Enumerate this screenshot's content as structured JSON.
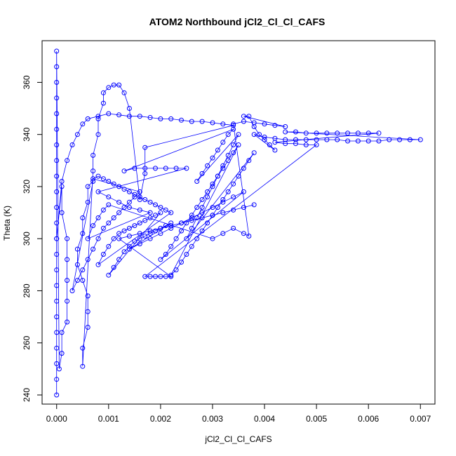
{
  "chart_data": {
    "type": "scatter",
    "title": "ATOM2 Northbound jCl2_Cl_Cl_CAFS",
    "xlabel": "jCl2_Cl_Cl_CAFS",
    "ylabel": "Theta (K)",
    "xlim": [
      -0.00028,
      0.00728
    ],
    "ylim": [
      236.5,
      376
    ],
    "xticks": [
      "0.000",
      "0.001",
      "0.002",
      "0.003",
      "0.004",
      "0.005",
      "0.006",
      "0.007"
    ],
    "yticks": [
      "240",
      "260",
      "280",
      "300",
      "320",
      "340",
      "360"
    ],
    "marker": "open-circle",
    "line_connected": true,
    "grid": false,
    "color": "#0000ff",
    "series": [
      {
        "points": [
          [
            0.0,
            240
          ],
          [
            0.0,
            246
          ],
          [
            0.0,
            252
          ],
          [
            0.0,
            258
          ],
          [
            0.0,
            264
          ],
          [
            0.0,
            270
          ],
          [
            0.0,
            276
          ],
          [
            0.0,
            282
          ],
          [
            0.0,
            288
          ],
          [
            0.0,
            294
          ],
          [
            0.0,
            300
          ],
          [
            0.0,
            306
          ],
          [
            0.0,
            312
          ],
          [
            0.0,
            318
          ],
          [
            0.0,
            324
          ],
          [
            0.0,
            330
          ],
          [
            0.0,
            336
          ],
          [
            0.0,
            342
          ],
          [
            0.0,
            348
          ],
          [
            0.0,
            354
          ],
          [
            0.0,
            360
          ],
          [
            0.0,
            366
          ],
          [
            0.0,
            372
          ],
          [
            5e-05,
            250
          ],
          [
            0.0001,
            256
          ],
          [
            0.0001,
            264
          ],
          [
            0.0002,
            268
          ],
          [
            0.0002,
            276
          ],
          [
            0.0002,
            284
          ],
          [
            0.0002,
            292
          ],
          [
            0.0002,
            300
          ],
          [
            0.0001,
            310
          ],
          [
            0.0001,
            320
          ],
          [
            0.0,
            300
          ],
          [
            0.0001,
            322
          ],
          [
            0.0002,
            330
          ],
          [
            0.0003,
            336
          ],
          [
            0.0004,
            340
          ],
          [
            0.0005,
            344
          ],
          [
            0.0006,
            346
          ],
          [
            0.0008,
            347
          ],
          [
            0.001,
            348
          ],
          [
            0.0012,
            347.5
          ],
          [
            0.0014,
            347
          ],
          [
            0.0016,
            347
          ],
          [
            0.0018,
            346.5
          ],
          [
            0.002,
            346
          ],
          [
            0.0022,
            346
          ],
          [
            0.0024,
            345.5
          ],
          [
            0.0026,
            345
          ],
          [
            0.0028,
            345
          ],
          [
            0.003,
            344.5
          ],
          [
            0.0032,
            344
          ],
          [
            0.0034,
            343.5
          ],
          [
            0.0017,
            335
          ],
          [
            0.0017,
            325
          ],
          [
            0.0016,
            315
          ],
          [
            0.0014,
            350
          ],
          [
            0.0013,
            356
          ],
          [
            0.0012,
            359
          ],
          [
            0.0011,
            359
          ],
          [
            0.001,
            358
          ],
          [
            0.0009,
            356
          ],
          [
            0.0009,
            352
          ],
          [
            0.0008,
            346
          ],
          [
            0.0008,
            340
          ],
          [
            0.0007,
            332
          ],
          [
            0.0007,
            326
          ],
          [
            0.0005,
            251
          ],
          [
            0.0005,
            258
          ],
          [
            0.0006,
            266
          ],
          [
            0.0006,
            272
          ],
          [
            0.0006,
            278
          ],
          [
            0.0005,
            284
          ],
          [
            0.0004,
            290
          ],
          [
            0.0004,
            296
          ],
          [
            0.0005,
            302
          ],
          [
            0.0005,
            308
          ],
          [
            0.0006,
            314
          ],
          [
            0.0006,
            320
          ],
          [
            0.0007,
            322
          ],
          [
            0.0003,
            280
          ],
          [
            0.0004,
            284
          ],
          [
            0.0005,
            288
          ],
          [
            0.0006,
            292
          ],
          [
            0.0007,
            296
          ],
          [
            0.0008,
            300
          ],
          [
            0.0009,
            304
          ],
          [
            0.001,
            306
          ],
          [
            0.0011,
            308
          ],
          [
            0.0012,
            310
          ],
          [
            0.0013,
            312
          ],
          [
            0.0014,
            314
          ],
          [
            0.0015,
            316
          ],
          [
            0.0016,
            318
          ],
          [
            0.0007,
            323
          ],
          [
            0.0008,
            324
          ],
          [
            0.0009,
            323
          ],
          [
            0.001,
            322
          ],
          [
            0.0011,
            321
          ],
          [
            0.0012,
            320
          ],
          [
            0.0013,
            319
          ],
          [
            0.0014,
            318
          ],
          [
            0.0015,
            317
          ],
          [
            0.0016,
            316
          ],
          [
            0.0017,
            315
          ],
          [
            0.0018,
            314
          ],
          [
            0.0019,
            313
          ],
          [
            0.002,
            312
          ],
          [
            0.0021,
            311
          ],
          [
            0.0022,
            310
          ],
          [
            0.0008,
            290
          ],
          [
            0.0009,
            294
          ],
          [
            0.001,
            297
          ],
          [
            0.0011,
            300
          ],
          [
            0.0012,
            302
          ],
          [
            0.0013,
            303
          ],
          [
            0.0014,
            304
          ],
          [
            0.0015,
            305
          ],
          [
            0.0016,
            306
          ],
          [
            0.0017,
            307
          ],
          [
            0.0018,
            308
          ],
          [
            0.0019,
            309
          ],
          [
            0.002,
            310
          ],
          [
            0.001,
            286
          ],
          [
            0.0011,
            289
          ],
          [
            0.0012,
            292
          ],
          [
            0.0013,
            295
          ],
          [
            0.0014,
            297
          ],
          [
            0.0015,
            299
          ],
          [
            0.0016,
            300
          ],
          [
            0.0017,
            301
          ],
          [
            0.0018,
            302
          ],
          [
            0.0019,
            303
          ],
          [
            0.002,
            304
          ],
          [
            0.0021,
            305
          ],
          [
            0.0022,
            306
          ],
          [
            0.0014,
            296
          ],
          [
            0.0016,
            298
          ],
          [
            0.0018,
            300
          ],
          [
            0.002,
            302
          ],
          [
            0.0022,
            304
          ],
          [
            0.0024,
            306
          ],
          [
            0.0026,
            308
          ],
          [
            0.0028,
            310
          ],
          [
            0.003,
            312
          ],
          [
            0.0032,
            314
          ],
          [
            0.0034,
            316
          ],
          [
            0.0036,
            318
          ],
          [
            0.002,
            292
          ],
          [
            0.0021,
            294
          ],
          [
            0.0022,
            297
          ],
          [
            0.0023,
            300
          ],
          [
            0.0024,
            303
          ],
          [
            0.0025,
            306
          ],
          [
            0.0026,
            309
          ],
          [
            0.0027,
            312
          ],
          [
            0.0028,
            315
          ],
          [
            0.0029,
            318
          ],
          [
            0.003,
            321
          ],
          [
            0.0031,
            324
          ],
          [
            0.0032,
            327
          ],
          [
            0.0033,
            330
          ],
          [
            0.0034,
            333
          ],
          [
            0.0035,
            336
          ],
          [
            0.0022,
            286
          ],
          [
            0.0023,
            288
          ],
          [
            0.0024,
            291
          ],
          [
            0.0025,
            294
          ],
          [
            0.0026,
            297
          ],
          [
            0.0027,
            300
          ],
          [
            0.0028,
            303
          ],
          [
            0.0029,
            306
          ],
          [
            0.003,
            309
          ],
          [
            0.0031,
            312
          ],
          [
            0.0032,
            315
          ],
          [
            0.0033,
            318
          ],
          [
            0.0034,
            321
          ],
          [
            0.0035,
            324
          ],
          [
            0.0036,
            327
          ],
          [
            0.0037,
            330
          ],
          [
            0.0038,
            333
          ],
          [
            0.0025,
            300
          ],
          [
            0.0026,
            304
          ],
          [
            0.0027,
            308
          ],
          [
            0.0028,
            312
          ],
          [
            0.0029,
            316
          ],
          [
            0.003,
            320
          ],
          [
            0.0031,
            324
          ],
          [
            0.0032,
            328
          ],
          [
            0.0033,
            332
          ],
          [
            0.0034,
            336
          ],
          [
            0.0035,
            340
          ],
          [
            0.0027,
            322
          ],
          [
            0.0028,
            325
          ],
          [
            0.0029,
            328
          ],
          [
            0.003,
            331
          ],
          [
            0.0031,
            334
          ],
          [
            0.0032,
            337
          ],
          [
            0.0033,
            340
          ],
          [
            0.0034,
            342
          ],
          [
            0.0013,
            326
          ],
          [
            0.0015,
            327
          ],
          [
            0.0017,
            327
          ],
          [
            0.0019,
            327
          ],
          [
            0.0021,
            327
          ],
          [
            0.0023,
            327
          ],
          [
            0.0025,
            327
          ],
          [
            0.0008,
            318
          ],
          [
            0.001,
            316
          ],
          [
            0.0012,
            314
          ],
          [
            0.0014,
            312
          ],
          [
            0.0016,
            311
          ],
          [
            0.0018,
            310
          ],
          [
            0.0006,
            300
          ],
          [
            0.0007,
            305
          ],
          [
            0.0008,
            308
          ],
          [
            0.0009,
            311
          ],
          [
            0.001,
            313
          ],
          [
            0.003,
            300
          ],
          [
            0.0032,
            302
          ],
          [
            0.0034,
            304
          ],
          [
            0.0036,
            302
          ],
          [
            0.0037,
            301
          ],
          [
            0.0034,
            344
          ],
          [
            0.0036,
            345
          ],
          [
            0.0038,
            344.5
          ],
          [
            0.004,
            344
          ],
          [
            0.0042,
            343.5
          ],
          [
            0.0044,
            343
          ],
          [
            0.0036,
            347
          ],
          [
            0.0037,
            347
          ],
          [
            0.0038,
            343
          ],
          [
            0.0039,
            340
          ],
          [
            0.004,
            338
          ],
          [
            0.0041,
            336
          ],
          [
            0.0042,
            334
          ],
          [
            0.0038,
            340
          ],
          [
            0.004,
            339
          ],
          [
            0.0042,
            338.5
          ],
          [
            0.0044,
            338
          ],
          [
            0.0046,
            338
          ],
          [
            0.0048,
            338
          ],
          [
            0.005,
            338
          ],
          [
            0.0052,
            338
          ],
          [
            0.0054,
            338
          ],
          [
            0.0056,
            337.5
          ],
          [
            0.0058,
            337.5
          ],
          [
            0.006,
            337.5
          ],
          [
            0.0062,
            337.5
          ],
          [
            0.0064,
            338
          ],
          [
            0.0066,
            338
          ],
          [
            0.0068,
            338
          ],
          [
            0.007,
            338
          ],
          [
            0.0044,
            341
          ],
          [
            0.0046,
            341
          ],
          [
            0.0048,
            340.5
          ],
          [
            0.005,
            340.5
          ],
          [
            0.0052,
            340.5
          ],
          [
            0.0054,
            340.5
          ],
          [
            0.0056,
            340.5
          ],
          [
            0.0058,
            340.5
          ],
          [
            0.006,
            340.5
          ],
          [
            0.0062,
            340.5
          ],
          [
            0.0042,
            337
          ],
          [
            0.0044,
            336.5
          ],
          [
            0.0046,
            336.5
          ],
          [
            0.0048,
            336
          ],
          [
            0.005,
            336
          ],
          [
            0.0017,
            285.5
          ],
          [
            0.0018,
            285.5
          ],
          [
            0.0019,
            285.5
          ],
          [
            0.002,
            285.5
          ],
          [
            0.0021,
            285.5
          ],
          [
            0.0022,
            285.5
          ],
          [
            0.0012,
            300
          ],
          [
            0.0014,
            301
          ],
          [
            0.0016,
            302
          ],
          [
            0.0018,
            303
          ],
          [
            0.002,
            304
          ],
          [
            0.0022,
            305
          ],
          [
            0.0024,
            306
          ],
          [
            0.0026,
            307
          ],
          [
            0.0028,
            308
          ],
          [
            0.003,
            309
          ],
          [
            0.0032,
            310
          ],
          [
            0.0034,
            311
          ],
          [
            0.0036,
            312
          ],
          [
            0.0038,
            313
          ]
        ]
      }
    ]
  }
}
